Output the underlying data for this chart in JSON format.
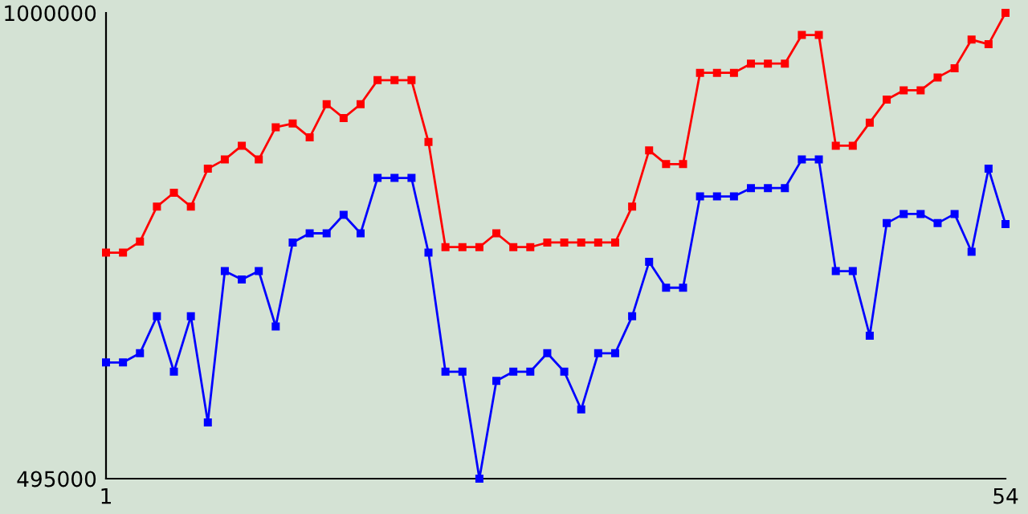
{
  "chart_data": {
    "type": "line",
    "x": [
      1,
      2,
      3,
      4,
      5,
      6,
      7,
      8,
      9,
      10,
      11,
      12,
      13,
      14,
      15,
      16,
      17,
      18,
      19,
      20,
      21,
      22,
      23,
      24,
      25,
      26,
      27,
      28,
      29,
      30,
      31,
      32,
      33,
      34,
      35,
      36,
      37,
      38,
      39,
      40,
      41,
      42,
      43,
      44,
      45,
      46,
      47,
      48,
      49,
      50,
      51,
      52,
      53,
      54
    ],
    "xlim": [
      1,
      54
    ],
    "xticks": [
      1,
      54
    ],
    "ylim": [
      495000,
      1000000
    ],
    "yticks": [
      495000,
      1000000
    ],
    "grid": false,
    "legend": false,
    "marker": "square",
    "line_style": "solid",
    "series": [
      {
        "color": "#ff0000",
        "values": [
          740000,
          740000,
          752000,
          790000,
          805000,
          790000,
          831000,
          841000,
          856000,
          841000,
          876000,
          880000,
          865000,
          901000,
          886000,
          901000,
          927000,
          927000,
          927000,
          860000,
          746000,
          746000,
          746000,
          761000,
          746000,
          746000,
          751000,
          751000,
          751000,
          751000,
          751000,
          790000,
          851000,
          836000,
          836000,
          935000,
          935000,
          935000,
          945000,
          945000,
          945000,
          976000,
          976000,
          856000,
          856000,
          881000,
          906000,
          916000,
          916000,
          930000,
          940000,
          971000,
          966000,
          1000000
        ]
      },
      {
        "color": "#0000ff",
        "values": [
          621000,
          621000,
          631000,
          671000,
          611000,
          671000,
          556000,
          720000,
          711000,
          720000,
          660000,
          751000,
          761000,
          761000,
          781000,
          761000,
          821000,
          821000,
          821000,
          740000,
          611000,
          611000,
          495000,
          601000,
          611000,
          611000,
          631000,
          611000,
          570000,
          631000,
          631000,
          671000,
          730000,
          702000,
          702000,
          801000,
          801000,
          801000,
          810000,
          810000,
          810000,
          841000,
          841000,
          720000,
          720000,
          650000,
          772000,
          782000,
          782000,
          772000,
          782000,
          741000,
          831000,
          771000
        ]
      }
    ]
  }
}
